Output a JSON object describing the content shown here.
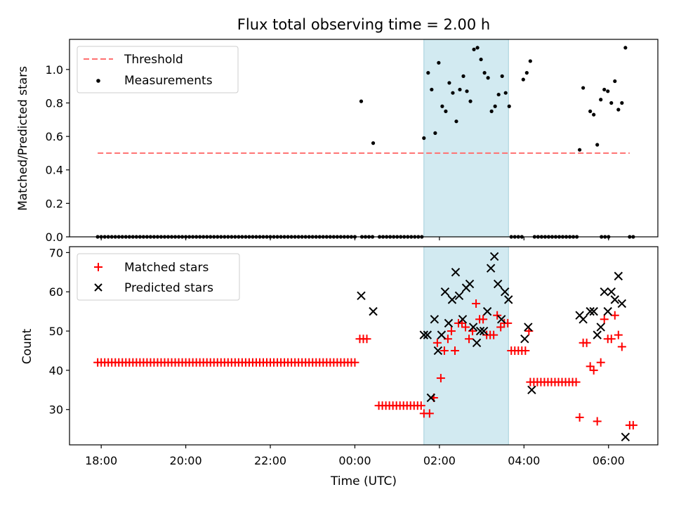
{
  "title": "Flux total observing time = 2.00 h",
  "xlabel": "Time (UTC)",
  "chart_data": [
    {
      "type": "scatter",
      "ylabel": "Matched/Predicted stars",
      "xlim": [
        "17:15",
        "07:10"
      ],
      "ylim": [
        0,
        1.18
      ],
      "yticks": [
        "0.0",
        "0.2",
        "0.4",
        "0.6",
        "0.8",
        "1.0"
      ],
      "xticks": [
        "18:00",
        "20:00",
        "22:00",
        "00:00",
        "02:00",
        "04:00",
        "06:00"
      ],
      "shaded_interval": [
        "01:38",
        "03:38"
      ],
      "shade_color": "#add8e6",
      "legend_position": "upper-left",
      "threshold": {
        "name": "Threshold",
        "value": 0.5,
        "x_range": [
          "17:55",
          "06:30"
        ],
        "color": "#ff7070",
        "style": "dashed"
      },
      "series": [
        {
          "name": "Measurements",
          "marker": "dot",
          "color": "#000000",
          "zero_runs": [
            [
              "17:55",
              "00:00"
            ],
            [
              "00:10",
              "00:28"
            ],
            [
              "00:35",
              "01:35"
            ],
            [
              "03:42",
              "03:58"
            ],
            [
              "04:15",
              "05:15"
            ],
            [
              "05:50",
              "06:00"
            ],
            [
              "06:30",
              "06:35"
            ]
          ],
          "points": [
            [
              "00:09",
              0.81
            ],
            [
              "00:26",
              0.56
            ],
            [
              "01:38",
              0.59
            ],
            [
              "01:44",
              0.98
            ],
            [
              "01:49",
              0.88
            ],
            [
              "01:54",
              0.62
            ],
            [
              "01:59",
              1.04
            ],
            [
              "02:04",
              0.78
            ],
            [
              "02:09",
              0.75
            ],
            [
              "02:14",
              0.92
            ],
            [
              "02:19",
              0.86
            ],
            [
              "02:24",
              0.69
            ],
            [
              "02:29",
              0.88
            ],
            [
              "02:34",
              0.96
            ],
            [
              "02:39",
              0.87
            ],
            [
              "02:44",
              0.81
            ],
            [
              "02:49",
              1.12
            ],
            [
              "02:54",
              1.13
            ],
            [
              "02:59",
              1.06
            ],
            [
              "03:04",
              0.98
            ],
            [
              "03:09",
              0.95
            ],
            [
              "03:14",
              0.75
            ],
            [
              "03:19",
              0.78
            ],
            [
              "03:24",
              0.85
            ],
            [
              "03:29",
              0.96
            ],
            [
              "03:34",
              0.86
            ],
            [
              "03:39",
              0.78
            ],
            [
              "03:59",
              0.94
            ],
            [
              "04:04",
              0.98
            ],
            [
              "04:09",
              1.05
            ],
            [
              "05:19",
              0.52
            ],
            [
              "05:24",
              0.89
            ],
            [
              "05:34",
              0.75
            ],
            [
              "05:39",
              0.73
            ],
            [
              "05:44",
              0.55
            ],
            [
              "05:49",
              0.82
            ],
            [
              "05:54",
              0.88
            ],
            [
              "05:59",
              0.87
            ],
            [
              "06:04",
              0.8
            ],
            [
              "06:09",
              0.93
            ],
            [
              "06:14",
              0.76
            ],
            [
              "06:19",
              0.8
            ],
            [
              "06:24",
              1.13
            ]
          ]
        }
      ]
    },
    {
      "type": "scatter",
      "ylabel": "Count",
      "xlim": [
        "17:15",
        "07:10"
      ],
      "ylim": [
        21,
        71.5
      ],
      "yticks": [
        "30",
        "40",
        "50",
        "60",
        "70"
      ],
      "xticks": [
        "18:00",
        "20:00",
        "22:00",
        "00:00",
        "02:00",
        "04:00",
        "06:00"
      ],
      "shaded_interval": [
        "01:38",
        "03:38"
      ],
      "shade_color": "#add8e6",
      "legend_position": "upper-left",
      "series": [
        {
          "name": "Matched stars",
          "marker": "plus",
          "color": "#ff0000",
          "runs": [
            [
              [
                "17:55",
                "00:04"
              ],
              42
            ],
            [
              [
                "00:34",
                "01:35"
              ],
              31
            ],
            [
              [
                "04:09",
                "05:15"
              ],
              37
            ],
            [
              [
                "06:30",
                "06:39"
              ],
              26
            ]
          ],
          "points": [
            [
              "00:07",
              48
            ],
            [
              "00:12",
              48
            ],
            [
              "00:17",
              48
            ],
            [
              "01:38",
              29
            ],
            [
              "01:46",
              29
            ],
            [
              "01:52",
              33
            ],
            [
              "01:57",
              47
            ],
            [
              "02:02",
              38
            ],
            [
              "02:07",
              45
            ],
            [
              "02:12",
              48
            ],
            [
              "02:17",
              50
            ],
            [
              "02:22",
              45
            ],
            [
              "02:27",
              52
            ],
            [
              "02:32",
              52
            ],
            [
              "02:37",
              51
            ],
            [
              "02:42",
              48
            ],
            [
              "02:47",
              50
            ],
            [
              "02:52",
              57
            ],
            [
              "02:57",
              53
            ],
            [
              "03:02",
              53
            ],
            [
              "03:07",
              49
            ],
            [
              "03:12",
              49
            ],
            [
              "03:17",
              49
            ],
            [
              "03:22",
              54
            ],
            [
              "03:27",
              51
            ],
            [
              "03:32",
              52
            ],
            [
              "03:37",
              52
            ],
            [
              "03:42",
              45
            ],
            [
              "03:47",
              45
            ],
            [
              "03:52",
              45
            ],
            [
              "03:57",
              45
            ],
            [
              "04:02",
              45
            ],
            [
              "04:07",
              50
            ],
            [
              "05:19",
              28
            ],
            [
              "05:24",
              47
            ],
            [
              "05:29",
              47
            ],
            [
              "05:34",
              41
            ],
            [
              "05:39",
              40
            ],
            [
              "05:44",
              27
            ],
            [
              "05:49",
              42
            ],
            [
              "05:54",
              53
            ],
            [
              "05:59",
              48
            ],
            [
              "06:04",
              48
            ],
            [
              "06:09",
              54
            ],
            [
              "06:14",
              49
            ],
            [
              "06:19",
              46
            ]
          ]
        },
        {
          "name": "Predicted stars",
          "marker": "x",
          "color": "#000000",
          "points": [
            [
              "00:09",
              59
            ],
            [
              "00:26",
              55
            ],
            [
              "01:38",
              49
            ],
            [
              "01:43",
              49
            ],
            [
              "01:48",
              33
            ],
            [
              "01:53",
              53
            ],
            [
              "01:58",
              45
            ],
            [
              "02:03",
              49
            ],
            [
              "02:08",
              60
            ],
            [
              "02:13",
              52
            ],
            [
              "02:18",
              58
            ],
            [
              "02:23",
              65
            ],
            [
              "02:28",
              59
            ],
            [
              "02:33",
              53
            ],
            [
              "02:38",
              61
            ],
            [
              "02:43",
              62
            ],
            [
              "02:48",
              51
            ],
            [
              "02:53",
              47
            ],
            [
              "02:58",
              50
            ],
            [
              "03:03",
              50
            ],
            [
              "03:08",
              55
            ],
            [
              "03:13",
              66
            ],
            [
              "03:18",
              69
            ],
            [
              "03:23",
              62
            ],
            [
              "03:28",
              53
            ],
            [
              "03:33",
              60
            ],
            [
              "03:38",
              58
            ],
            [
              "04:01",
              48
            ],
            [
              "04:06",
              51
            ],
            [
              "04:11",
              35
            ],
            [
              "05:19",
              54
            ],
            [
              "05:24",
              53
            ],
            [
              "05:34",
              55
            ],
            [
              "05:39",
              55
            ],
            [
              "05:44",
              49
            ],
            [
              "05:49",
              51
            ],
            [
              "05:54",
              60
            ],
            [
              "05:59",
              55
            ],
            [
              "06:04",
              60
            ],
            [
              "06:09",
              58
            ],
            [
              "06:14",
              64
            ],
            [
              "06:19",
              57
            ],
            [
              "06:24",
              23
            ]
          ]
        }
      ]
    }
  ]
}
